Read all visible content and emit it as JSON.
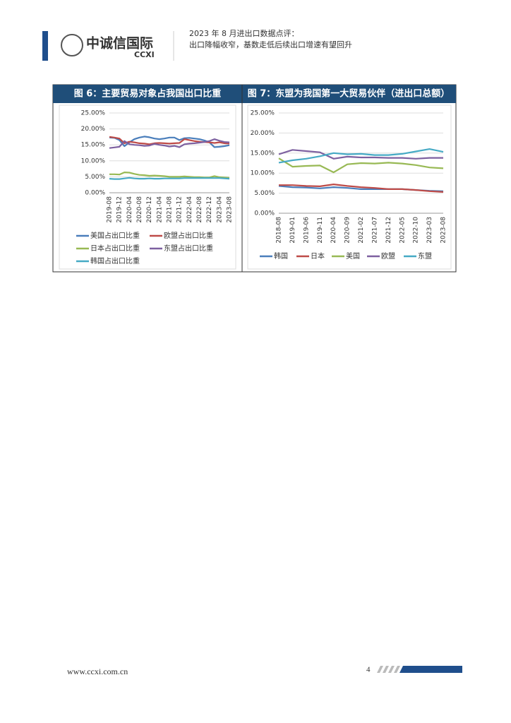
{
  "header": {
    "logo_cn": "中诚信国际",
    "logo_en": "CCXI",
    "line1": "2023 年 8 月进出口数据点评：",
    "line2": "出口降幅收窄，基数走低后续出口增速有望回升"
  },
  "chart_data": [
    {
      "type": "line",
      "title": "图 6：主要贸易对象占我国出口比重",
      "categories": [
        "2019-08",
        null,
        "2019-12",
        null,
        "2020-04",
        null,
        "2020-08",
        null,
        "2020-12",
        null,
        "2021-04",
        null,
        "2021-08",
        null,
        "2021-12",
        null,
        "2022-04",
        null,
        "2022-08",
        null,
        "2022-12",
        null,
        "2023-04",
        null,
        "2023-08"
      ],
      "ylim": [
        0,
        25
      ],
      "yticks": [
        {
          "value": 0,
          "label": "0.00%"
        },
        {
          "value": 5,
          "label": "5.00%"
        },
        {
          "value": 10,
          "label": "10.00%"
        },
        {
          "value": 15,
          "label": "15.00%"
        },
        {
          "value": 20,
          "label": "20.00%"
        },
        {
          "value": 25,
          "label": "25.00%"
        }
      ],
      "grid": true,
      "series": [
        {
          "name": "美国占出口比重",
          "color": "#4a7ebb",
          "values": [
            17.3,
            17.2,
            16.5,
            14.6,
            15.8,
            16.8,
            17.3,
            17.6,
            17.4,
            17.0,
            16.8,
            17.0,
            17.3,
            17.3,
            16.5,
            17.1,
            17.2,
            17.0,
            16.8,
            16.4,
            15.8,
            14.3,
            14.4,
            14.6,
            14.9
          ]
        },
        {
          "name": "欧盟占出口比重",
          "color": "#be4b48",
          "values": [
            17.5,
            17.3,
            17.0,
            15.5,
            16.0,
            15.8,
            15.5,
            15.4,
            15.2,
            15.5,
            15.6,
            15.5,
            15.4,
            15.5,
            15.6,
            16.8,
            16.5,
            16.2,
            16.0,
            15.9,
            15.8,
            15.6,
            15.8,
            15.5,
            15.4
          ]
        },
        {
          "name": "日本占出口比重",
          "color": "#98b954",
          "values": [
            5.8,
            5.8,
            5.7,
            6.4,
            6.3,
            5.9,
            5.6,
            5.5,
            5.3,
            5.4,
            5.3,
            5.2,
            5.0,
            5.0,
            5.0,
            5.1,
            5.0,
            4.9,
            4.9,
            4.8,
            4.8,
            5.2,
            4.9,
            4.8,
            4.7
          ]
        },
        {
          "name": "东盟占出口比重",
          "color": "#7d60a0",
          "values": [
            14.0,
            14.2,
            14.4,
            16.2,
            15.2,
            15.0,
            14.9,
            14.7,
            14.8,
            15.3,
            15.0,
            14.8,
            14.5,
            14.7,
            14.3,
            15.2,
            15.4,
            15.5,
            15.7,
            15.9,
            16.2,
            16.8,
            16.3,
            15.9,
            15.8
          ]
        },
        {
          "name": "韩国占出口比重",
          "color": "#46aac5",
          "values": [
            4.4,
            4.3,
            4.3,
            4.5,
            4.7,
            4.5,
            4.4,
            4.4,
            4.5,
            4.4,
            4.4,
            4.5,
            4.5,
            4.5,
            4.5,
            4.6,
            4.6,
            4.6,
            4.6,
            4.6,
            4.6,
            4.6,
            4.6,
            4.5,
            4.4
          ]
        }
      ]
    },
    {
      "type": "line",
      "title": "图 7：东盟为我国第一大贸易伙伴（进出口总额）",
      "categories": [
        "2018-08",
        "2019-01",
        "2019-06",
        "2019-11",
        "2020-04",
        "2020-09",
        "2021-02",
        "2021-07",
        "2021-12",
        "2022-05",
        "2022-10",
        "2023-03",
        "2023-08"
      ],
      "ylim": [
        0,
        25
      ],
      "yticks": [
        {
          "value": 0,
          "label": "0.00%"
        },
        {
          "value": 5,
          "label": "5.00%"
        },
        {
          "value": 10,
          "label": "10.00%"
        },
        {
          "value": 15,
          "label": "15.00%"
        },
        {
          "value": 20,
          "label": "20.00%"
        },
        {
          "value": 25,
          "label": "25.00%"
        }
      ],
      "grid": true,
      "series": [
        {
          "name": "韩国",
          "color": "#4a7ebb",
          "values": [
            6.8,
            6.5,
            6.4,
            6.2,
            6.5,
            6.3,
            6.0,
            6.0,
            6.0,
            6.0,
            5.8,
            5.6,
            5.5
          ]
        },
        {
          "name": "日本",
          "color": "#be4b48",
          "values": [
            7.0,
            7.0,
            6.8,
            6.7,
            7.2,
            6.8,
            6.5,
            6.3,
            6.0,
            6.0,
            5.8,
            5.5,
            5.3
          ]
        },
        {
          "name": "美国",
          "color": "#98b954",
          "values": [
            13.7,
            11.6,
            11.8,
            11.9,
            10.2,
            12.2,
            12.5,
            12.4,
            12.6,
            12.4,
            12.0,
            11.4,
            11.2
          ]
        },
        {
          "name": "欧盟",
          "color": "#7d60a0",
          "values": [
            14.7,
            15.8,
            15.5,
            15.2,
            13.6,
            14.1,
            13.9,
            13.9,
            13.8,
            13.8,
            13.6,
            13.8,
            13.8
          ]
        },
        {
          "name": "东盟",
          "color": "#46aac5",
          "values": [
            12.6,
            13.2,
            13.6,
            14.2,
            15.0,
            14.7,
            14.8,
            14.5,
            14.5,
            14.8,
            15.4,
            16.0,
            15.3
          ]
        }
      ]
    }
  ],
  "footer": {
    "url": "www.ccxi.com.cn",
    "page": "4"
  }
}
